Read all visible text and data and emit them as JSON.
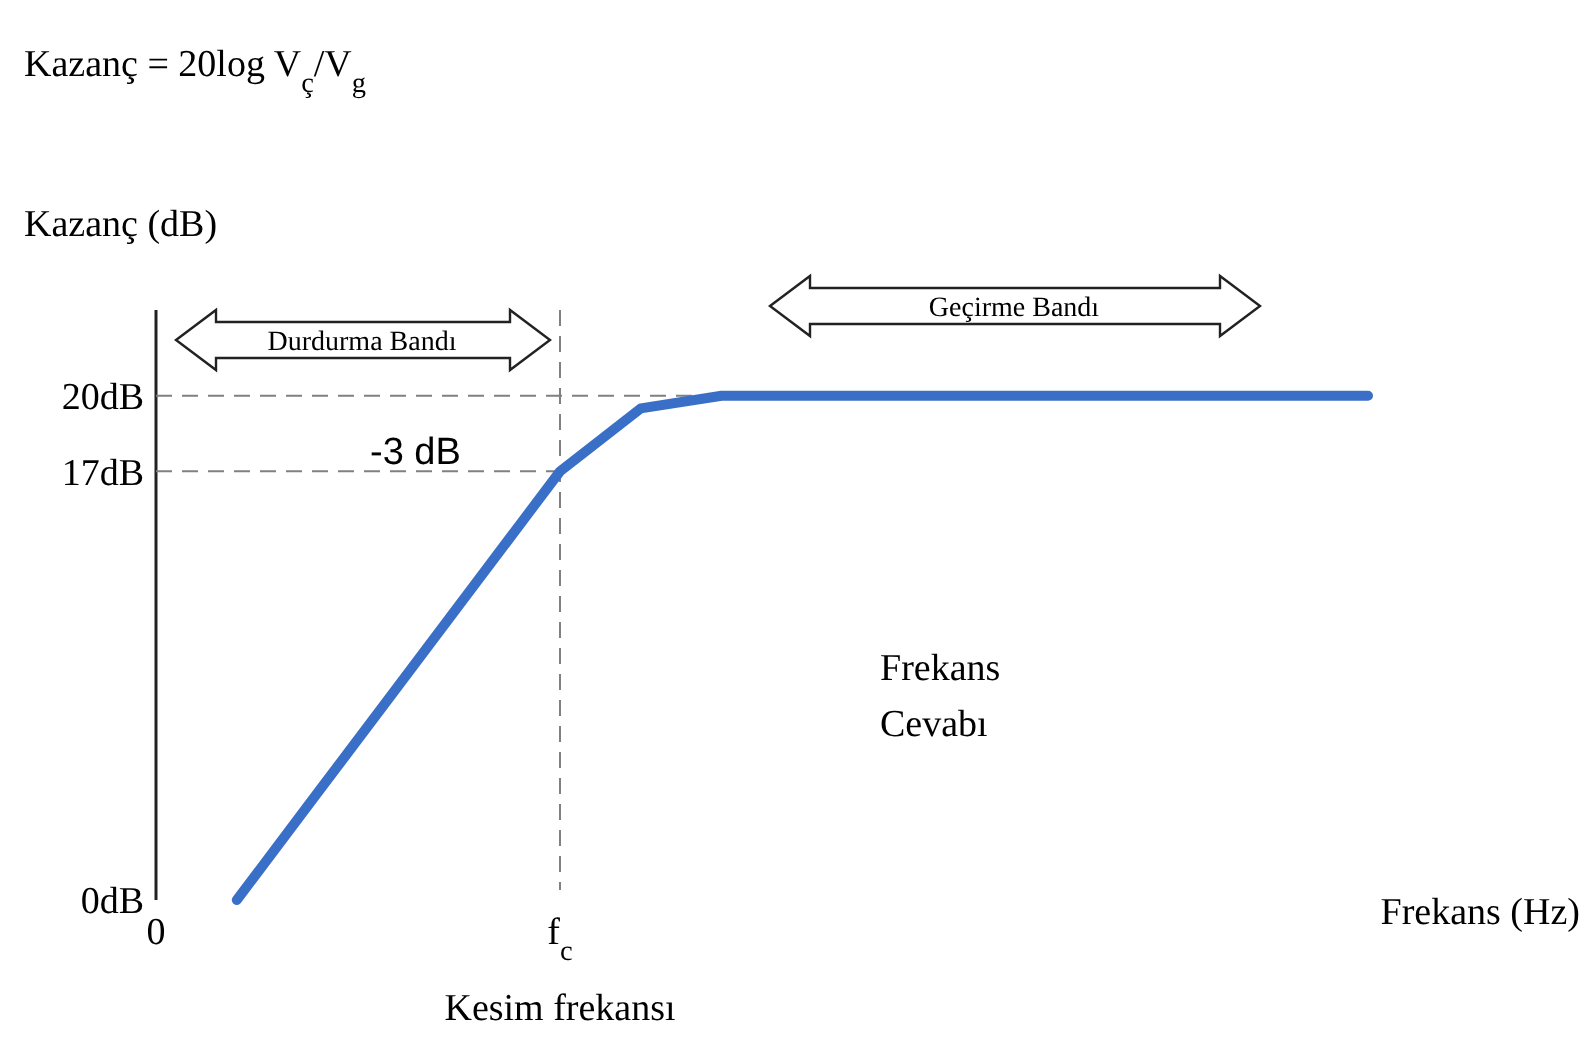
{
  "chart_data": {
    "type": "line",
    "ylabel": "Kazanç (dB)",
    "xlabel": "Frekans (Hz)",
    "categories": [
      "0",
      null,
      null,
      null,
      null,
      "f$_{c}$",
      null,
      null,
      null,
      null,
      null,
      null,
      null,
      null,
      null,
      null
    ],
    "series": [
      {
        "color": "#3a6fc8",
        "values": [
          null,
          0,
          4.25,
          8.5,
          12.75,
          17,
          19.5,
          20,
          20,
          20,
          20,
          20,
          20,
          20,
          20,
          20
        ]
      }
    ],
    "ylim": [
      0,
      23.4
    ],
    "yticks": [
      {
        "value": 0,
        "label": "0dB"
      },
      {
        "value": 17,
        "label": "17dB"
      },
      {
        "value": 20,
        "label": "20dB"
      }
    ],
    "ref_lines": [
      {
        "axis": "y",
        "value": 20,
        "line_style": "dashed",
        "color": "#808080"
      },
      {
        "axis": "y",
        "value": 17,
        "line_style": "dashed",
        "color": "#808080"
      },
      {
        "axis": "x",
        "value": "f$_{c}$",
        "line_style": "dashed",
        "color": "#808080"
      }
    ],
    "annotations": [
      "Kazanç = 20log V$_{ç}$/V$_{g}$",
      "-3 dB",
      "Durdurma Bandı",
      "Geçirme Bandı",
      "Frekans Cevabı",
      "Kesim frekansı"
    ],
    "line_style": "solid",
    "grid": false
  }
}
